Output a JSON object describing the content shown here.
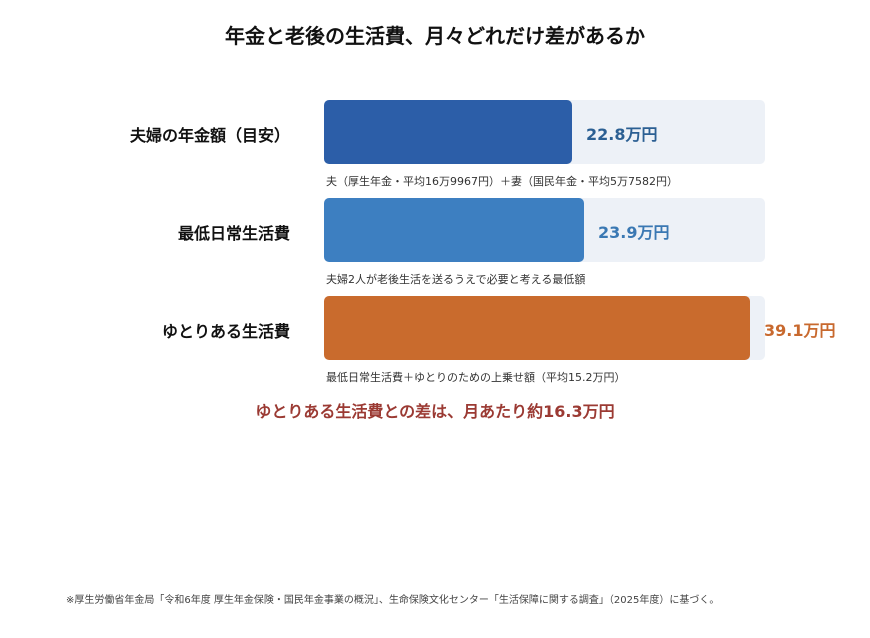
{
  "chart_data": {
    "type": "bar",
    "orientation": "horizontal",
    "title": "年金と老後の生活費、月々どれだけ差があるか",
    "categories": [
      "夫婦の年金額（目安）",
      "最低日常生活費",
      "ゆとりある生活費"
    ],
    "values": [
      22.8,
      23.9,
      39.1
    ],
    "value_labels": [
      "22.8万円",
      "23.9万円",
      "39.1万円"
    ],
    "notes": [
      "夫（厚生年金・平均16万9967円）＋妻（国民年金・平均5万7582円）",
      "夫婦2人が老後生活を送るうえで必要と考える最低額",
      "最低日常生活費＋ゆとりのための上乗せ額（平均15.2万円）"
    ],
    "colors": [
      "#2c5ea8",
      "#3d7fc1",
      "#c96b2d"
    ],
    "value_colors": [
      "#2b5f93",
      "#3a78b3",
      "#c8692e"
    ],
    "xlim": [
      0,
      40.5
    ],
    "grid": false,
    "legend": "none"
  },
  "summary": "ゆとりある生活費との差は、月あたり約16.3万円",
  "footnote": "※厚生労働省年金局「令和6年度 厚生年金保険・国民年金事業の概況」、生命保険文化センター「生活保障に関する調査」（2025年度）に基づく。"
}
